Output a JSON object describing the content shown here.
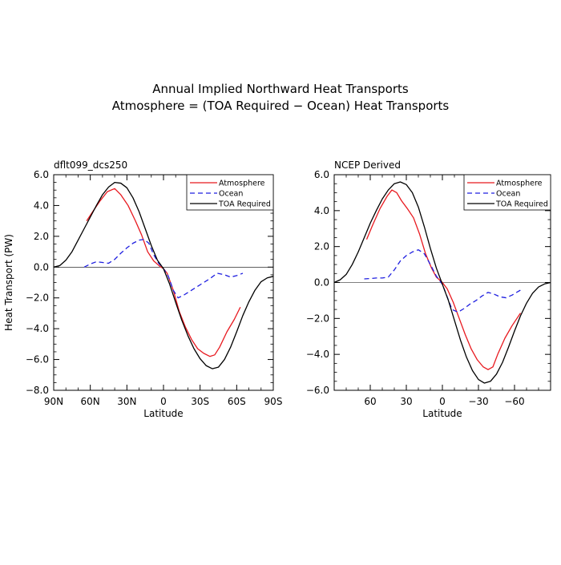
{
  "title_line1": "Annual Implied Northward Heat Transports",
  "title_line2": "Atmosphere = (TOA Required − Ocean) Heat Transports",
  "chart_data": [
    {
      "type": "line",
      "subtitle": "dflt099_dcs250",
      "xlabel": "Latitude",
      "ylabel": "Heat Transport (PW)",
      "xlim": [
        90,
        -90
      ],
      "ylim": [
        -8.0,
        6.0
      ],
      "xticks": [
        90,
        60,
        30,
        0,
        -30,
        -60,
        -90
      ],
      "xtick_labels": [
        "90N",
        "60N",
        "30N",
        "0",
        "30S",
        "60S",
        "90S"
      ],
      "yticks": [
        6,
        4,
        2,
        0,
        -2,
        -4,
        -6,
        -8
      ],
      "ytick_labels": [
        "6.0",
        "4.0",
        "2.0",
        "0.0",
        "−2.0",
        "−4.0",
        "−6.0",
        "−8.0"
      ],
      "zero_line": true,
      "legend_position": "top-right",
      "series": [
        {
          "name": "Atmosphere",
          "color": "#e8191f",
          "dash": "solid",
          "points": [
            [
              63,
              3.0
            ],
            [
              58,
              3.6
            ],
            [
              52,
              4.3
            ],
            [
              46,
              4.9
            ],
            [
              40,
              5.1
            ],
            [
              35,
              4.7
            ],
            [
              29,
              4.0
            ],
            [
              23,
              3.0
            ],
            [
              18,
              2.1
            ],
            [
              13,
              1.0
            ],
            [
              8,
              0.4
            ],
            [
              3,
              0.05
            ],
            [
              0,
              -0.1
            ],
            [
              -3,
              -0.4
            ],
            [
              -8,
              -1.5
            ],
            [
              -13,
              -2.9
            ],
            [
              -18,
              -3.9
            ],
            [
              -23,
              -4.7
            ],
            [
              -28,
              -5.3
            ],
            [
              -33,
              -5.6
            ],
            [
              -38,
              -5.8
            ],
            [
              -42,
              -5.7
            ],
            [
              -46,
              -5.2
            ],
            [
              -52,
              -4.2
            ],
            [
              -58,
              -3.4
            ],
            [
              -63,
              -2.6
            ]
          ]
        },
        {
          "name": "Ocean",
          "color": "#1f1fe0",
          "dash": "dashed",
          "points": [
            [
              65,
              0.0
            ],
            [
              60,
              0.2
            ],
            [
              55,
              0.35
            ],
            [
              50,
              0.3
            ],
            [
              45,
              0.25
            ],
            [
              40,
              0.5
            ],
            [
              35,
              0.9
            ],
            [
              30,
              1.25
            ],
            [
              25,
              1.55
            ],
            [
              20,
              1.75
            ],
            [
              16,
              1.8
            ],
            [
              12,
              1.55
            ],
            [
              8,
              0.8
            ],
            [
              4,
              0.25
            ],
            [
              0,
              -0.1
            ],
            [
              -4,
              -0.6
            ],
            [
              -8,
              -1.5
            ],
            [
              -12,
              -2.0
            ],
            [
              -17,
              -1.8
            ],
            [
              -22,
              -1.55
            ],
            [
              -28,
              -1.25
            ],
            [
              -33,
              -1.0
            ],
            [
              -38,
              -0.75
            ],
            [
              -44,
              -0.4
            ],
            [
              -50,
              -0.5
            ],
            [
              -55,
              -0.65
            ],
            [
              -60,
              -0.55
            ],
            [
              -65,
              -0.4
            ]
          ]
        },
        {
          "name": "TOA Required",
          "color": "#000000",
          "dash": "solid",
          "points": [
            [
              90,
              0.0
            ],
            [
              85,
              0.1
            ],
            [
              80,
              0.45
            ],
            [
              75,
              1.0
            ],
            [
              70,
              1.75
            ],
            [
              65,
              2.5
            ],
            [
              60,
              3.25
            ],
            [
              55,
              4.0
            ],
            [
              50,
              4.7
            ],
            [
              45,
              5.2
            ],
            [
              40,
              5.5
            ],
            [
              35,
              5.45
            ],
            [
              30,
              5.15
            ],
            [
              25,
              4.5
            ],
            [
              20,
              3.6
            ],
            [
              15,
              2.5
            ],
            [
              10,
              1.4
            ],
            [
              5,
              0.45
            ],
            [
              0,
              -0.1
            ],
            [
              -5,
              -1.1
            ],
            [
              -10,
              -2.3
            ],
            [
              -15,
              -3.45
            ],
            [
              -20,
              -4.45
            ],
            [
              -25,
              -5.3
            ],
            [
              -30,
              -5.95
            ],
            [
              -35,
              -6.4
            ],
            [
              -40,
              -6.6
            ],
            [
              -45,
              -6.5
            ],
            [
              -50,
              -6.0
            ],
            [
              -55,
              -5.2
            ],
            [
              -60,
              -4.2
            ],
            [
              -65,
              -3.15
            ],
            [
              -70,
              -2.25
            ],
            [
              -75,
              -1.5
            ],
            [
              -80,
              -0.95
            ],
            [
              -85,
              -0.7
            ],
            [
              -90,
              -0.6
            ]
          ]
        }
      ]
    },
    {
      "type": "line",
      "subtitle": "NCEP Derived",
      "xlabel": "Latitude",
      "ylabel": "",
      "xlim": [
        90,
        -90
      ],
      "ylim": [
        -6.0,
        6.0
      ],
      "xticks": [
        60,
        30,
        0,
        -30,
        -60
      ],
      "xtick_labels": [
        "60",
        "30",
        "0",
        "−30",
        "−60"
      ],
      "yticks": [
        6,
        4,
        2,
        0,
        -2,
        -4,
        -6
      ],
      "ytick_labels": [
        "6.0",
        "4.0",
        "2.0",
        "0.0",
        "−2.0",
        "−4.0",
        "−6.0"
      ],
      "zero_line": true,
      "legend_position": "top-right",
      "series": [
        {
          "name": "Atmosphere",
          "color": "#e8191f",
          "dash": "solid",
          "points": [
            [
              63,
              2.4
            ],
            [
              58,
              3.2
            ],
            [
              52,
              4.1
            ],
            [
              46,
              4.8
            ],
            [
              42,
              5.15
            ],
            [
              38,
              5.0
            ],
            [
              34,
              4.55
            ],
            [
              29,
              4.1
            ],
            [
              24,
              3.6
            ],
            [
              19,
              2.7
            ],
            [
              14,
              1.6
            ],
            [
              9,
              0.8
            ],
            [
              5,
              0.3
            ],
            [
              0,
              0.0
            ],
            [
              -4,
              -0.35
            ],
            [
              -9,
              -1.1
            ],
            [
              -14,
              -2.0
            ],
            [
              -19,
              -2.9
            ],
            [
              -24,
              -3.7
            ],
            [
              -29,
              -4.3
            ],
            [
              -34,
              -4.7
            ],
            [
              -38,
              -4.85
            ],
            [
              -42,
              -4.7
            ],
            [
              -46,
              -4.0
            ],
            [
              -52,
              -3.1
            ],
            [
              -58,
              -2.4
            ],
            [
              -65,
              -1.7
            ]
          ]
        },
        {
          "name": "Ocean",
          "color": "#1f1fe0",
          "dash": "dashed",
          "points": [
            [
              65,
              0.2
            ],
            [
              60,
              0.22
            ],
            [
              55,
              0.25
            ],
            [
              50,
              0.25
            ],
            [
              45,
              0.3
            ],
            [
              40,
              0.7
            ],
            [
              35,
              1.2
            ],
            [
              30,
              1.5
            ],
            [
              25,
              1.7
            ],
            [
              20,
              1.82
            ],
            [
              15,
              1.6
            ],
            [
              10,
              1.0
            ],
            [
              5,
              0.35
            ],
            [
              0,
              -0.1
            ],
            [
              -4,
              -0.8
            ],
            [
              -8,
              -1.5
            ],
            [
              -13,
              -1.65
            ],
            [
              -18,
              -1.45
            ],
            [
              -23,
              -1.2
            ],
            [
              -28,
              -1.0
            ],
            [
              -33,
              -0.75
            ],
            [
              -38,
              -0.55
            ],
            [
              -43,
              -0.65
            ],
            [
              -48,
              -0.8
            ],
            [
              -53,
              -0.85
            ],
            [
              -58,
              -0.7
            ],
            [
              -63,
              -0.5
            ],
            [
              -67,
              -0.35
            ]
          ]
        },
        {
          "name": "TOA Required",
          "color": "#000000",
          "dash": "solid",
          "points": [
            [
              90,
              0.0
            ],
            [
              85,
              0.15
            ],
            [
              80,
              0.45
            ],
            [
              75,
              1.0
            ],
            [
              70,
              1.7
            ],
            [
              65,
              2.5
            ],
            [
              60,
              3.3
            ],
            [
              55,
              4.0
            ],
            [
              50,
              4.65
            ],
            [
              45,
              5.15
            ],
            [
              40,
              5.5
            ],
            [
              35,
              5.6
            ],
            [
              30,
              5.45
            ],
            [
              25,
              5.0
            ],
            [
              20,
              4.2
            ],
            [
              15,
              3.1
            ],
            [
              10,
              1.9
            ],
            [
              5,
              0.8
            ],
            [
              0,
              -0.1
            ],
            [
              -5,
              -1.0
            ],
            [
              -10,
              -2.1
            ],
            [
              -15,
              -3.2
            ],
            [
              -20,
              -4.15
            ],
            [
              -25,
              -4.9
            ],
            [
              -30,
              -5.4
            ],
            [
              -35,
              -5.6
            ],
            [
              -40,
              -5.5
            ],
            [
              -45,
              -5.1
            ],
            [
              -50,
              -4.45
            ],
            [
              -55,
              -3.6
            ],
            [
              -60,
              -2.7
            ],
            [
              -65,
              -1.85
            ],
            [
              -70,
              -1.15
            ],
            [
              -75,
              -0.6
            ],
            [
              -80,
              -0.25
            ],
            [
              -85,
              -0.08
            ],
            [
              -90,
              0.0
            ]
          ]
        }
      ]
    }
  ]
}
